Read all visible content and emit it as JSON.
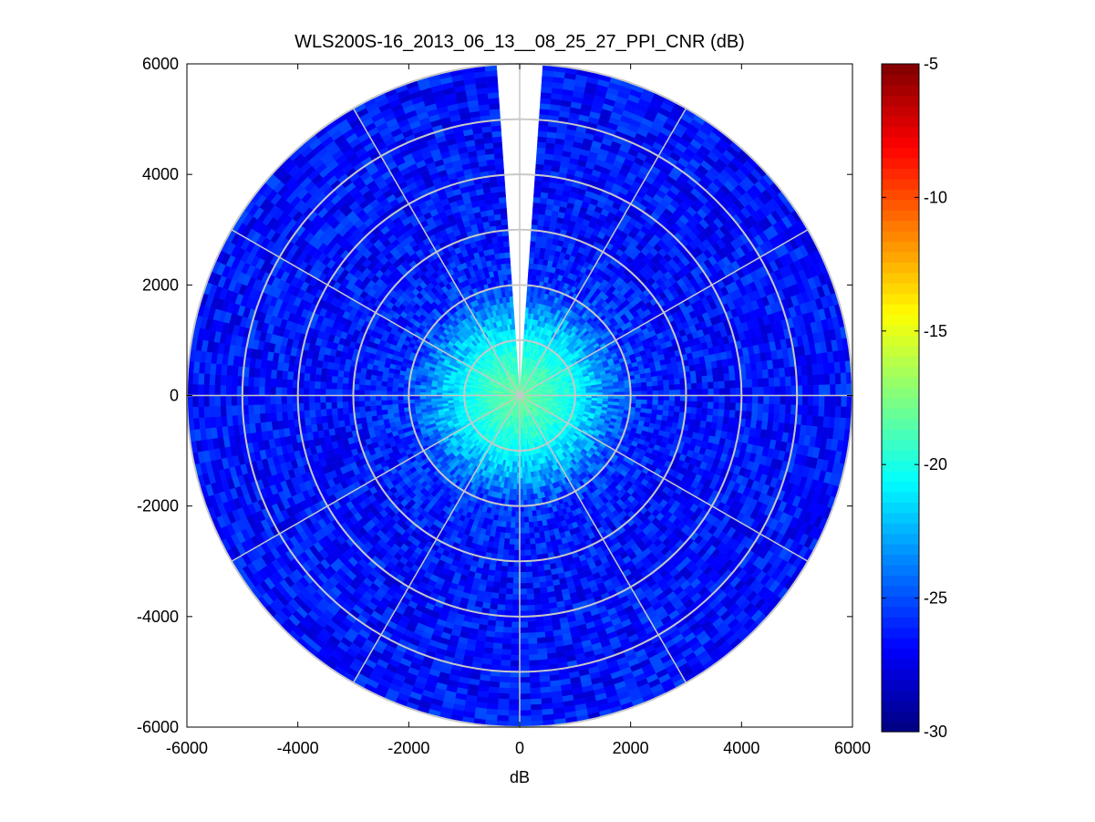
{
  "chart_data": {
    "type": "heatmap",
    "subtype": "polar-ppi",
    "title": "WLS200S-16_2013_06_13__08_25_27_PPI_CNR (dB)",
    "xlabel": "dB",
    "ylabel": "",
    "xlim": [
      -6000,
      6000
    ],
    "ylim": [
      -6000,
      6000
    ],
    "xticks": [
      -6000,
      -4000,
      -2000,
      0,
      2000,
      4000,
      6000
    ],
    "yticks": [
      -6000,
      -4000,
      -2000,
      0,
      2000,
      4000,
      6000
    ],
    "max_range": 6000,
    "range_rings": [
      1000,
      2000,
      3000,
      4000,
      5000,
      6000
    ],
    "spoke_angles_deg": [
      0,
      30,
      60,
      90,
      120,
      150,
      180,
      210,
      240,
      270,
      300,
      330
    ],
    "missing_sector_deg": [
      -4,
      4
    ],
    "cnr_profile": {
      "range_m": [
        0,
        500,
        1000,
        1500,
        2000,
        3000,
        6000
      ],
      "cnr_db": [
        -18,
        -19,
        -20.5,
        -23,
        -25.5,
        -26.5,
        -26.5
      ]
    },
    "colorbar": {
      "label": "",
      "limits": [
        -30,
        -5
      ],
      "ticks": [
        -5,
        -10,
        -15,
        -20,
        -25,
        -30
      ],
      "colormap": "jet"
    }
  }
}
